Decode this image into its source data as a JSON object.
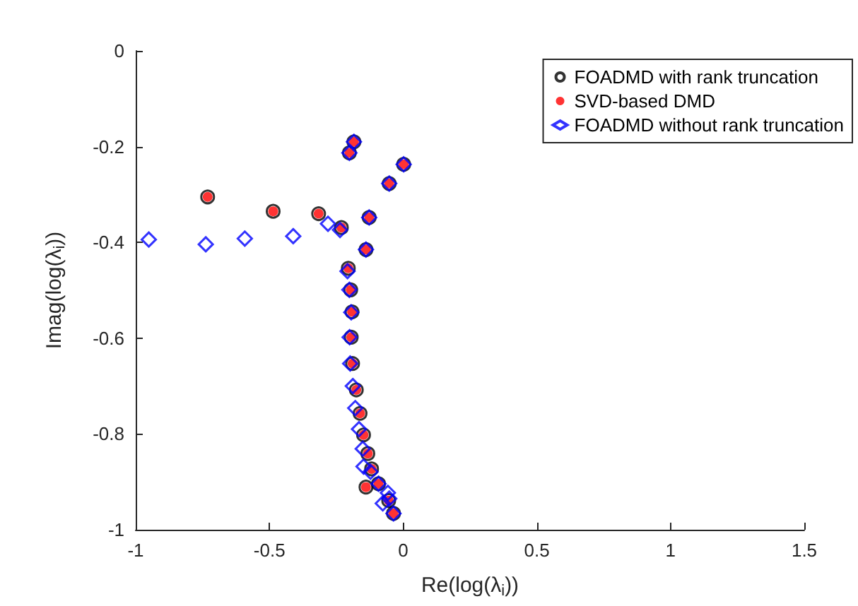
{
  "chart_data": {
    "type": "scatter",
    "xlabel": "Re(log(λ$_{i}$))",
    "ylabel": "Imag(log(λ$_{i}$))",
    "xlim": [
      -1,
      1.5
    ],
    "xticks": [
      -1,
      -0.5,
      0,
      0.5,
      1,
      1.5
    ],
    "ylim": [
      -1,
      0
    ],
    "yticks": [
      -1,
      -0.8,
      -0.6,
      -0.4,
      -0.2,
      0
    ],
    "grid": false,
    "legend": "top right",
    "series": [
      {
        "name": "FOADMD with rank truncation",
        "color": "#000000",
        "marker": "circle",
        "x": [
          -0.731,
          -0.486,
          -0.316,
          -0.231,
          -0.184,
          -0.201,
          0.002,
          -0.052,
          -0.127,
          -0.139,
          -0.205,
          -0.196,
          -0.191,
          -0.194,
          -0.189,
          -0.175,
          -0.161,
          -0.148,
          -0.132,
          -0.118,
          -0.092,
          -0.139,
          -0.054,
          -0.036
        ],
        "values": [
          -0.305,
          -0.335,
          -0.34,
          -0.369,
          -0.19,
          -0.213,
          -0.237,
          -0.277,
          -0.348,
          -0.415,
          -0.454,
          -0.499,
          -0.545,
          -0.598,
          -0.653,
          -0.708,
          -0.757,
          -0.802,
          -0.841,
          -0.873,
          -0.904,
          -0.911,
          -0.939,
          -0.966
        ]
      },
      {
        "name": "SVD-based DMD",
        "color": "#ff0000",
        "marker": "circle",
        "x": [
          -0.731,
          -0.486,
          -0.316,
          -0.231,
          -0.184,
          -0.201,
          0.002,
          -0.052,
          -0.127,
          -0.139,
          -0.205,
          -0.196,
          -0.191,
          -0.194,
          -0.189,
          -0.175,
          -0.161,
          -0.148,
          -0.132,
          -0.118,
          -0.092,
          -0.139,
          -0.054,
          -0.036
        ],
        "values": [
          -0.305,
          -0.335,
          -0.34,
          -0.369,
          -0.19,
          -0.213,
          -0.237,
          -0.277,
          -0.348,
          -0.415,
          -0.454,
          -0.499,
          -0.545,
          -0.598,
          -0.653,
          -0.708,
          -0.757,
          -0.802,
          -0.841,
          -0.873,
          -0.904,
          -0.911,
          -0.939,
          -0.966
        ]
      },
      {
        "name": "FOADMD without rank truncation",
        "color": "#0000ff",
        "marker": "diamond",
        "x": [
          -0.951,
          -0.738,
          -0.592,
          -0.411,
          -0.281,
          -0.236,
          -0.184,
          -0.201,
          0.002,
          -0.052,
          -0.127,
          -0.139,
          -0.208,
          -0.201,
          -0.194,
          -0.2,
          -0.198,
          -0.188,
          -0.179,
          -0.165,
          -0.151,
          -0.148,
          -0.122,
          -0.092,
          -0.057,
          -0.076,
          -0.052,
          -0.036
        ],
        "values": [
          -0.394,
          -0.404,
          -0.392,
          -0.387,
          -0.361,
          -0.374,
          -0.19,
          -0.213,
          -0.237,
          -0.277,
          -0.348,
          -0.415,
          -0.46,
          -0.499,
          -0.546,
          -0.598,
          -0.653,
          -0.7,
          -0.746,
          -0.79,
          -0.831,
          -0.868,
          -0.879,
          -0.904,
          -0.923,
          -0.945,
          -0.935,
          -0.966
        ]
      }
    ]
  }
}
